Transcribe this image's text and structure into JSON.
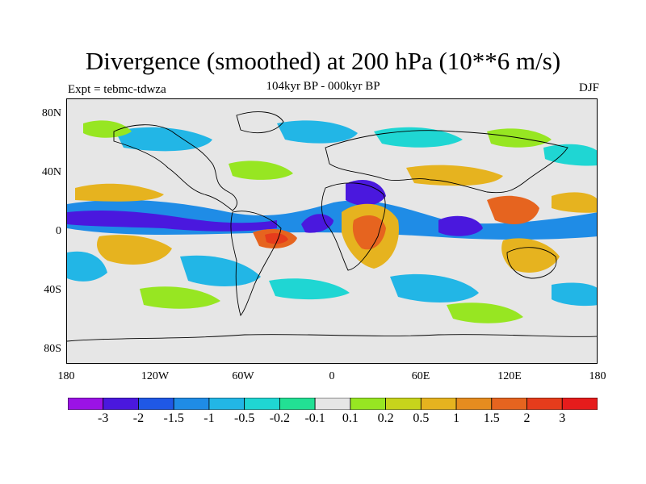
{
  "title": "Divergence (smoothed) at 200 hPa (10**6 m/s)",
  "experiment_label": "Expt = tebmc-tdwza",
  "period_label": "104kyr BP - 000kyr BP",
  "season_label": "DJF",
  "y_ticks": [
    "80N",
    "40N",
    "0",
    "40S",
    "80S"
  ],
  "x_ticks": [
    "180",
    "120W",
    "60W",
    "0",
    "60E",
    "120E",
    "180"
  ],
  "colorbar": {
    "colors": [
      "#9b12e6",
      "#4a18de",
      "#1f58e6",
      "#1f8ce6",
      "#22b6e6",
      "#1fd6d3",
      "#22e094",
      "#e6e6e6",
      "#97e622",
      "#c7d41c",
      "#e6b31f",
      "#e68c1f",
      "#e6641f",
      "#e63c1c",
      "#e61c1c"
    ],
    "labels": [
      "-3",
      "-2",
      "-1.5",
      "-1",
      "-0.5",
      "-0.2",
      "-0.1",
      "0.1",
      "0.2",
      "0.5",
      "1",
      "1.5",
      "2",
      "3"
    ]
  },
  "map_colors": {
    "neutral": "#e6e6e6",
    "strong_neg": "#4a18de",
    "mid_neg": "#1f8ce6",
    "weak_neg": "#1fd6d3",
    "weak_pos": "#97e622",
    "mid_pos": "#e6b31f",
    "strong_pos": "#e6641f",
    "max_pos": "#e63c1c"
  }
}
